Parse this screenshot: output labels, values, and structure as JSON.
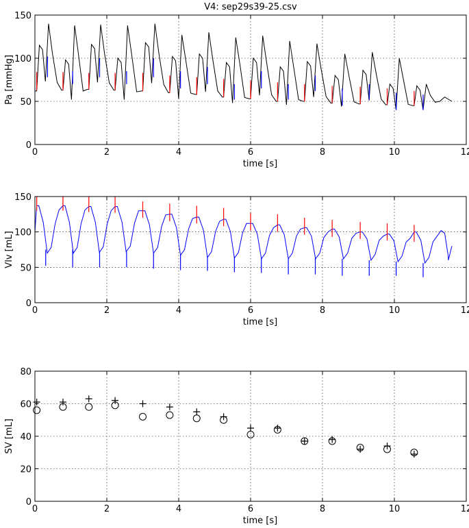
{
  "figure": {
    "title": "V4: sep29s39-25.csv"
  },
  "chart_data": [
    {
      "id": "pa",
      "type": "line",
      "title": "V4: sep29s39-25.csv",
      "xlabel": "time [s]",
      "ylabel": "Pa [mmHg]",
      "xlim": [
        0,
        12
      ],
      "ylim": [
        0,
        150
      ],
      "xticks": [
        0,
        2,
        4,
        6,
        8,
        10,
        12
      ],
      "yticks": [
        0,
        50,
        100,
        150
      ],
      "grid": true,
      "pressure_trace": {
        "color": "#000000",
        "beats": [
          {
            "t": 0.05,
            "dia": 62,
            "peak": 115,
            "low": 73,
            "peak2": 140
          },
          {
            "t": 0.78,
            "dia": 63,
            "peak": 98,
            "low": 52,
            "peak2": 138
          },
          {
            "t": 1.5,
            "dia": 64,
            "peak": 116,
            "low": 72,
            "peak2": 139
          },
          {
            "t": 2.23,
            "dia": 63,
            "peak": 100,
            "low": 52,
            "peak2": 138
          },
          {
            "t": 3.0,
            "dia": 62,
            "peak": 118,
            "low": 71,
            "peak2": 140
          },
          {
            "t": 3.75,
            "dia": 60,
            "peak": 102,
            "low": 53,
            "peak2": 127
          },
          {
            "t": 4.5,
            "dia": 58,
            "peak": 105,
            "low": 61,
            "peak2": 130
          },
          {
            "t": 5.25,
            "dia": 55,
            "peak": 95,
            "low": 48,
            "peak2": 124
          },
          {
            "t": 6.0,
            "dia": 53,
            "peak": 100,
            "low": 57,
            "peak2": 126
          },
          {
            "t": 6.75,
            "dia": 50,
            "peak": 90,
            "low": 46,
            "peak2": 120
          },
          {
            "t": 7.5,
            "dia": 50,
            "peak": 96,
            "low": 55,
            "peak2": 117
          },
          {
            "t": 8.27,
            "dia": 48,
            "peak": 80,
            "low": 44,
            "peak2": 105
          },
          {
            "t": 9.05,
            "dia": 47,
            "peak": 86,
            "low": 51,
            "peak2": 107
          },
          {
            "t": 9.8,
            "dia": 46,
            "peak": 70,
            "low": 40,
            "peak2": 100
          },
          {
            "t": 10.55,
            "dia": 45,
            "peak": 68,
            "low": 40,
            "peak2": 70
          }
        ]
      },
      "red_markers": {
        "color": "#ff0000",
        "t": [
          0.05,
          0.78,
          1.5,
          2.23,
          3.0,
          3.75,
          4.5,
          5.25,
          6.0,
          6.75,
          7.5,
          8.27,
          9.05,
          9.8,
          10.55
        ],
        "top": [
          84,
          84,
          83,
          83,
          83,
          80,
          78,
          76,
          74,
          72,
          70,
          68,
          67,
          65,
          62
        ],
        "bottom": [
          63,
          63,
          64,
          63,
          62,
          60,
          58,
          55,
          53,
          50,
          50,
          48,
          47,
          46,
          45
        ]
      },
      "blue_markers": {
        "color": "#0000ff",
        "t": [
          0.35,
          1.05,
          1.8,
          2.55,
          3.3,
          4.05,
          4.8,
          5.55,
          6.3,
          7.05,
          7.8,
          8.55,
          9.3,
          10.05,
          10.8
        ],
        "top": [
          102,
          85,
          100,
          85,
          100,
          85,
          90,
          70,
          85,
          70,
          80,
          65,
          70,
          60,
          58
        ],
        "bottom": [
          78,
          70,
          78,
          70,
          78,
          65,
          70,
          52,
          65,
          52,
          62,
          45,
          52,
          40,
          40
        ]
      }
    },
    {
      "id": "vlv",
      "type": "line",
      "xlabel": "time [s]",
      "ylabel": "Vlv [mL]",
      "xlim": [
        0,
        12
      ],
      "ylim": [
        0,
        150
      ],
      "xticks": [
        0,
        2,
        4,
        6,
        8,
        10,
        12
      ],
      "yticks": [
        0,
        50,
        100,
        150
      ],
      "grid": true,
      "volume_trace": {
        "color": "#0000ff",
        "beats": [
          {
            "t": 0.05,
            "max": 137,
            "min": 70
          },
          {
            "t": 0.78,
            "max": 137,
            "min": 70
          },
          {
            "t": 1.5,
            "max": 136,
            "min": 71
          },
          {
            "t": 2.23,
            "max": 136,
            "min": 72
          },
          {
            "t": 3.0,
            "max": 130,
            "min": 70
          },
          {
            "t": 3.75,
            "max": 125,
            "min": 67
          },
          {
            "t": 4.5,
            "max": 121,
            "min": 64
          },
          {
            "t": 5.25,
            "max": 118,
            "min": 63
          },
          {
            "t": 6.0,
            "max": 112,
            "min": 62
          },
          {
            "t": 6.75,
            "max": 110,
            "min": 62
          },
          {
            "t": 7.5,
            "max": 106,
            "min": 62
          },
          {
            "t": 8.27,
            "max": 104,
            "min": 62
          },
          {
            "t": 9.05,
            "max": 100,
            "min": 60
          },
          {
            "t": 9.8,
            "max": 97,
            "min": 58
          },
          {
            "t": 10.55,
            "max": 100,
            "min": 56
          },
          {
            "t": 11.3,
            "max": 102,
            "min": 55
          }
        ],
        "end": {
          "t": 11.6,
          "v": 80
        }
      },
      "red_markers": {
        "color": "#ff0000",
        "t": [
          0.05,
          0.78,
          1.5,
          2.23,
          3.0,
          3.75,
          4.5,
          5.25,
          6.0,
          6.75,
          7.5,
          8.27,
          9.05,
          9.8,
          10.55
        ],
        "top": [
          150,
          150,
          150,
          150,
          143,
          140,
          137,
          134,
          127,
          125,
          120,
          117,
          114,
          112,
          110
        ],
        "bottom": [
          130,
          130,
          128,
          127,
          120,
          115,
          112,
          108,
          102,
          100,
          96,
          93,
          90,
          88,
          86
        ]
      },
      "blue_markers": {
        "color": "#0000ff",
        "t": [
          0.3,
          1.05,
          1.8,
          2.55,
          3.3,
          4.05,
          4.8,
          5.55,
          6.3,
          7.05,
          7.8,
          8.55,
          9.3,
          10.05,
          10.8
        ],
        "top": [
          75,
          75,
          73,
          72,
          70,
          68,
          66,
          65,
          64,
          63,
          63,
          62,
          60,
          58,
          56
        ],
        "bottom": [
          52,
          50,
          50,
          50,
          48,
          46,
          45,
          43,
          42,
          40,
          40,
          38,
          38,
          38,
          36
        ]
      }
    },
    {
      "id": "sv",
      "type": "scatter",
      "xlabel": "time [s]",
      "ylabel": "SV [mL]",
      "xlim": [
        0,
        12
      ],
      "ylim": [
        0,
        80
      ],
      "xticks": [
        0,
        2,
        4,
        6,
        8,
        10,
        12
      ],
      "yticks": [
        0,
        20,
        40,
        60,
        80
      ],
      "grid": true,
      "series": [
        {
          "marker": "plus",
          "x": [
            0.05,
            0.78,
            1.5,
            2.23,
            3.0,
            3.75,
            4.5,
            5.25,
            6.0,
            6.75,
            7.5,
            8.27,
            9.05,
            9.8,
            10.55
          ],
          "y": [
            61,
            61,
            63,
            62,
            60,
            58,
            55,
            52,
            45,
            45,
            37,
            38,
            32,
            34,
            29
          ]
        },
        {
          "marker": "circle",
          "x": [
            0.05,
            0.78,
            1.5,
            2.23,
            3.0,
            3.75,
            4.5,
            5.25,
            6.0,
            6.75,
            7.5,
            8.27,
            9.05,
            9.8,
            10.55
          ],
          "y": [
            56,
            58,
            58,
            59,
            52,
            53,
            51,
            50,
            41,
            44,
            37,
            37,
            33,
            32,
            30
          ]
        }
      ]
    }
  ]
}
